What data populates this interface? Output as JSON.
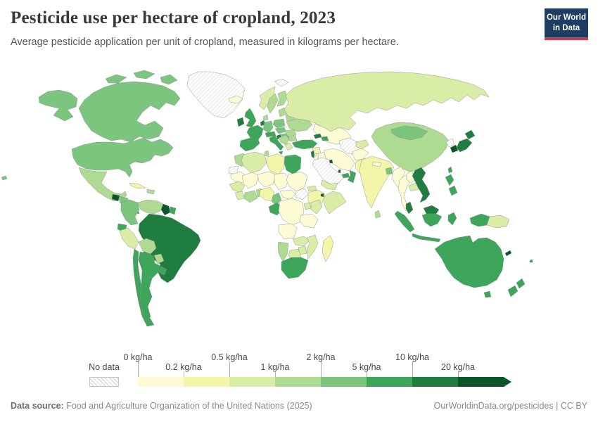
{
  "header": {
    "title": "Pesticide use per hectare of cropland, 2023",
    "subtitle": "Average pesticide application per unit of cropland, measured in kilograms per hectare."
  },
  "logo": {
    "line1": "Our World",
    "line2": "in Data",
    "bg_color": "#1d3d63",
    "accent_color": "#d13d4e"
  },
  "legend": {
    "no_data_label": "No data",
    "unit": "kg/ha",
    "ticks": [
      "0 kg/ha",
      "0.2 kg/ha",
      "0.5 kg/ha",
      "1 kg/ha",
      "2 kg/ha",
      "5 kg/ha",
      "10 kg/ha",
      "20 kg/ha"
    ],
    "bins": [
      {
        "range": "0-0.2 kg/ha",
        "color": "#fcfbd3"
      },
      {
        "range": "0.2-0.5 kg/ha",
        "color": "#f3f5a9"
      },
      {
        "range": "0.5-1 kg/ha",
        "color": "#d9eda6"
      },
      {
        "range": "1-2 kg/ha",
        "color": "#aeda92"
      },
      {
        "range": "2-5 kg/ha",
        "color": "#7bc57e"
      },
      {
        "range": "5-10 kg/ha",
        "color": "#3ea65b"
      },
      {
        "range": "10-20 kg/ha",
        "color": "#1f7d40"
      },
      {
        "range": "20+ kg/ha",
        "color": "#0c5429"
      }
    ],
    "no_data_hatch_color": "#cfcfcf"
  },
  "map": {
    "countries": {
      "greenland": {
        "label": "Greenland",
        "bin": -1
      },
      "svalbard": {
        "label": "Svalbard",
        "bin": -1
      },
      "canada": {
        "label": "Canada",
        "bin": 4
      },
      "canada_arctic_1": {
        "label": "Canada (Arctic islands)",
        "bin": 4
      },
      "canada_arctic_2": {
        "label": "Canada (Arctic islands)",
        "bin": 4
      },
      "canada_arctic_3": {
        "label": "Canada (Arctic islands)",
        "bin": 4
      },
      "alaska": {
        "label": "United States (Alaska)",
        "bin": 4
      },
      "hawaii": {
        "label": "United States (Hawaii)",
        "bin": 4
      },
      "usa": {
        "label": "United States",
        "bin": 4
      },
      "mexico": {
        "label": "Mexico",
        "bin": 3
      },
      "guatemala": {
        "label": "Guatemala",
        "bin": 7
      },
      "honduras_nicaragua": {
        "label": "Honduras & Nicaragua",
        "bin": 4
      },
      "costa_rica": {
        "label": "Costa Rica",
        "bin": 7
      },
      "panama": {
        "label": "Panama",
        "bin": 5
      },
      "cuba": {
        "label": "Cuba",
        "bin": 1
      },
      "hispaniola": {
        "label": "Haiti & Dominican Republic",
        "bin": 3
      },
      "colombia": {
        "label": "Colombia",
        "bin": 4
      },
      "venezuela": {
        "label": "Venezuela",
        "bin": 3
      },
      "guyana": {
        "label": "Guyana",
        "bin": 7
      },
      "suriname": {
        "label": "Suriname",
        "bin": 5
      },
      "ecuador": {
        "label": "Ecuador",
        "bin": 5
      },
      "peru": {
        "label": "Peru",
        "bin": 2
      },
      "brazil": {
        "label": "Brazil",
        "bin": 6
      },
      "bolivia": {
        "label": "Bolivia",
        "bin": 3
      },
      "paraguay": {
        "label": "Paraguay",
        "bin": 3
      },
      "chile": {
        "label": "Chile",
        "bin": 5
      },
      "argentina": {
        "label": "Argentina",
        "bin": 5
      },
      "uruguay": {
        "label": "Uruguay",
        "bin": 5
      },
      "iceland": {
        "label": "Iceland",
        "bin": 0
      },
      "ireland": {
        "label": "Ireland",
        "bin": 6
      },
      "uk": {
        "label": "United Kingdom",
        "bin": 5
      },
      "norway": {
        "label": "Norway",
        "bin": 2
      },
      "sweden": {
        "label": "Sweden",
        "bin": 3
      },
      "finland": {
        "label": "Finland",
        "bin": 3
      },
      "denmark": {
        "label": "Denmark",
        "bin": 3
      },
      "france": {
        "label": "France",
        "bin": 5
      },
      "spain": {
        "label": "Spain & Portugal",
        "bin": 5
      },
      "germany": {
        "label": "Germany",
        "bin": 4
      },
      "benelux": {
        "label": "Belgium & Netherlands",
        "bin": 6
      },
      "poland": {
        "label": "Poland",
        "bin": 4
      },
      "czech_slovakia": {
        "label": "Czechia & Slovakia",
        "bin": 4
      },
      "austria_swiss": {
        "label": "Austria & Switzerland",
        "bin": 5
      },
      "hungary": {
        "label": "Hungary",
        "bin": 4
      },
      "italy": {
        "label": "Italy",
        "bin": 5
      },
      "sicily": {
        "label": "Italy (Sicily)",
        "bin": 5
      },
      "croatia_slovenia": {
        "label": "Slovenia & Croatia",
        "bin": 6
      },
      "balkans": {
        "label": "Western Balkans",
        "bin": 3
      },
      "greece": {
        "label": "Greece",
        "bin": 2
      },
      "romania": {
        "label": "Romania",
        "bin": 3
      },
      "bulgaria": {
        "label": "Bulgaria",
        "bin": 3
      },
      "baltics": {
        "label": "Baltic states",
        "bin": 3
      },
      "belarus": {
        "label": "Belarus",
        "bin": 3
      },
      "ukraine": {
        "label": "Ukraine",
        "bin": 3
      },
      "russia": {
        "label": "Russia",
        "bin": 2
      },
      "kazakhstan": {
        "label": "Kazakhstan",
        "bin": 0
      },
      "uzbek_turkmen": {
        "label": "Uzbekistan & Turkmenistan",
        "bin": -1
      },
      "kyrgyz_tajik": {
        "label": "Kyrgyzstan & Tajikistan",
        "bin": 2
      },
      "georgia": {
        "label": "Georgia",
        "bin": 6
      },
      "azerbaijan": {
        "label": "Azerbaijan",
        "bin": 5
      },
      "turkey": {
        "label": "Turkey",
        "bin": 5
      },
      "syria": {
        "label": "Syria",
        "bin": 1
      },
      "iraq": {
        "label": "Iraq",
        "bin": 0
      },
      "israel": {
        "label": "Israel & Lebanon",
        "bin": 6
      },
      "jordan": {
        "label": "Jordan",
        "bin": 0
      },
      "iran": {
        "label": "Iran",
        "bin": 0
      },
      "afghanistan": {
        "label": "Afghanistan",
        "bin": 0
      },
      "pakistan": {
        "label": "Pakistan",
        "bin": 1
      },
      "saudi_arabia": {
        "label": "Saudi Arabia",
        "bin": -1
      },
      "kuwait": {
        "label": "Kuwait",
        "bin": 7
      },
      "qatar": {
        "label": "Qatar",
        "bin": 7
      },
      "uae": {
        "label": "United Arab Emirates",
        "bin": 5
      },
      "oman": {
        "label": "Oman",
        "bin": 5
      },
      "yemen": {
        "label": "Yemen",
        "bin": 2
      },
      "india": {
        "label": "India",
        "bin": 1
      },
      "nepal": {
        "label": "Nepal",
        "bin": 0
      },
      "bangladesh": {
        "label": "Bangladesh",
        "bin": 4
      },
      "sri_lanka": {
        "label": "Sri Lanka",
        "bin": 3
      },
      "china": {
        "label": "China",
        "bin": 3
      },
      "mongolia": {
        "label": "Mongolia",
        "bin": 4
      },
      "north_korea": {
        "label": "North Korea",
        "bin": -1
      },
      "south_korea": {
        "label": "South Korea",
        "bin": 7
      },
      "japan_hokkaido": {
        "label": "Japan (Hokkaido)",
        "bin": 6
      },
      "japan_honshu": {
        "label": "Japan (Honshu)",
        "bin": 6
      },
      "taiwan": {
        "label": "Taiwan",
        "bin": 5
      },
      "myanmar": {
        "label": "Myanmar",
        "bin": 0
      },
      "thailand": {
        "label": "Thailand",
        "bin": 0
      },
      "laos": {
        "label": "Laos",
        "bin": 0
      },
      "cambodia": {
        "label": "Cambodia",
        "bin": 2
      },
      "vietnam": {
        "label": "Vietnam",
        "bin": 6
      },
      "malaysia_peninsula": {
        "label": "Malaysia (Peninsular)",
        "bin": 6
      },
      "malaysia_borneo": {
        "label": "Malaysia (Borneo)",
        "bin": 6
      },
      "sumatra": {
        "label": "Indonesia (Sumatra)",
        "bin": 5
      },
      "java": {
        "label": "Indonesia (Java)",
        "bin": 5
      },
      "borneo_indonesia": {
        "label": "Indonesia (Kalimantan)",
        "bin": 5
      },
      "sulawesi": {
        "label": "Indonesia (Sulawesi)",
        "bin": 5
      },
      "west_papua": {
        "label": "Indonesia (Papua)",
        "bin": 5
      },
      "png": {
        "label": "Papua New Guinea",
        "bin": 2
      },
      "philippines_north": {
        "label": "Philippines (Luzon)",
        "bin": 5
      },
      "philippines_south": {
        "label": "Philippines (Visayas & Mindanao)",
        "bin": 5
      },
      "australia": {
        "label": "Australia",
        "bin": 5
      },
      "tasmania": {
        "label": "Australia (Tasmania)",
        "bin": 5
      },
      "nz_north": {
        "label": "New Zealand (North Island)",
        "bin": 5
      },
      "nz_south": {
        "label": "New Zealand (South Island)",
        "bin": 5
      },
      "new_caledonia": {
        "label": "New Caledonia",
        "bin": 7
      },
      "fiji": {
        "label": "Fiji",
        "bin": 5
      },
      "morocco": {
        "label": "Morocco",
        "bin": 3
      },
      "western_sahara": {
        "label": "Western Sahara",
        "bin": -1
      },
      "algeria": {
        "label": "Algeria",
        "bin": 2
      },
      "tunisia": {
        "label": "Tunisia",
        "bin": 3
      },
      "libya": {
        "label": "Libya",
        "bin": 1
      },
      "egypt": {
        "label": "Egypt",
        "bin": 5
      },
      "mauritania": {
        "label": "Mauritania",
        "bin": 0
      },
      "mali": {
        "label": "Mali",
        "bin": 0
      },
      "niger": {
        "label": "Niger",
        "bin": 0
      },
      "chad": {
        "label": "Chad",
        "bin": 0
      },
      "sudan": {
        "label": "Sudan",
        "bin": 0
      },
      "south_sudan": {
        "label": "South Sudan",
        "bin": -1
      },
      "eritrea": {
        "label": "Eritrea",
        "bin": 2
      },
      "ethiopia": {
        "label": "Ethiopia",
        "bin": 1
      },
      "djibouti": {
        "label": "Djibouti",
        "bin": 7
      },
      "somalia": {
        "label": "Somalia",
        "bin": 2
      },
      "senegal_guinea": {
        "label": "Senegal & Guinea",
        "bin": 2
      },
      "sierra_liberia": {
        "label": "Sierra Leone & Liberia",
        "bin": 2
      },
      "ivory_ghana": {
        "label": "Côte d'Ivoire & Ghana",
        "bin": 3
      },
      "togo_benin": {
        "label": "Togo & Benin",
        "bin": 3
      },
      "nigeria": {
        "label": "Nigeria",
        "bin": 1
      },
      "cameroon": {
        "label": "Cameroon",
        "bin": 4
      },
      "car": {
        "label": "Central African Republic",
        "bin": 0
      },
      "gabon_congo": {
        "label": "Gabon & Congo",
        "bin": 5
      },
      "drc": {
        "label": "Democratic Republic of Congo",
        "bin": 0
      },
      "uganda": {
        "label": "Uganda",
        "bin": 2
      },
      "kenya": {
        "label": "Kenya",
        "bin": 2
      },
      "tanzania": {
        "label": "Tanzania",
        "bin": 0
      },
      "angola": {
        "label": "Angola",
        "bin": 0
      },
      "zambia": {
        "label": "Zambia",
        "bin": 2
      },
      "mozambique": {
        "label": "Mozambique",
        "bin": 2
      },
      "zimbabwe": {
        "label": "Zimbabwe",
        "bin": 2
      },
      "botswana": {
        "label": "Botswana",
        "bin": 2
      },
      "namibia": {
        "label": "Namibia",
        "bin": 3
      },
      "south_africa": {
        "label": "South Africa",
        "bin": 5
      },
      "madagascar": {
        "label": "Madagascar",
        "bin": 1
      }
    }
  },
  "footer": {
    "source_label": "Data source:",
    "source_text": " Food and Agriculture Organization of the United Nations (2025)",
    "right_text": "OurWorldinData.org/pesticides | CC BY"
  }
}
